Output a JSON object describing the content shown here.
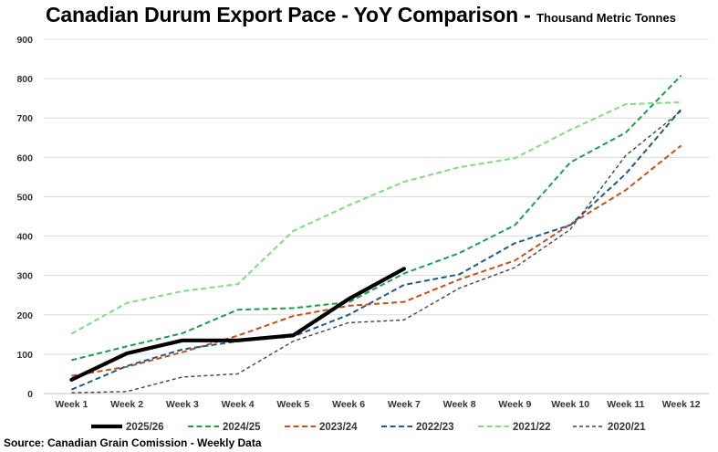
{
  "header": {
    "title": "Canadian Durum Export Pace - YoY Comparison -",
    "subtitle": "Thousand Metric Tonnes"
  },
  "footer": {
    "source": "Source: Canadian Grain Comission - Weekly Data"
  },
  "chart_data": {
    "type": "line",
    "title": "Canadian Durum Export Pace - YoY Comparison -",
    "subtitle": "Thousand Metric Tonnes",
    "xlabel": "",
    "ylabel": "",
    "categories": [
      "Week 1",
      "Week 2",
      "Week 3",
      "Week 4",
      "Week 5",
      "Week 6",
      "Week 7",
      "Week 8",
      "Week 9",
      "Week 10",
      "Week 11",
      "Week 12"
    ],
    "ylim": [
      0,
      900
    ],
    "yticks": [
      0,
      100,
      200,
      300,
      400,
      500,
      600,
      700,
      800,
      900
    ],
    "grid": "horizontal",
    "legend_position": "bottom",
    "series": [
      {
        "name": "2025/26",
        "color": "#000000",
        "style": "solid",
        "values": [
          35,
          102,
          135,
          135,
          148,
          240,
          317,
          null,
          null,
          null,
          null,
          null
        ]
      },
      {
        "name": "2024/25",
        "color": "#1e9e4a",
        "style": "dashed",
        "values": [
          85,
          120,
          153,
          213,
          217,
          232,
          305,
          357,
          428,
          587,
          663,
          808
        ]
      },
      {
        "name": "2023/24",
        "color": "#c4501a",
        "style": "dashed",
        "values": [
          45,
          68,
          105,
          147,
          197,
          223,
          233,
          290,
          338,
          430,
          517,
          630
        ]
      },
      {
        "name": "2022/23",
        "color": "#1f5a8a",
        "style": "dashed",
        "values": [
          10,
          70,
          112,
          133,
          145,
          200,
          276,
          303,
          382,
          428,
          558,
          722
        ]
      },
      {
        "name": "2021/22",
        "color": "#7fdc7f",
        "style": "dashed",
        "values": [
          152,
          230,
          260,
          278,
          413,
          478,
          538,
          575,
          598,
          670,
          735,
          740
        ]
      },
      {
        "name": "2020/21",
        "color": "#444444",
        "style": "dashed-thin",
        "values": [
          2,
          5,
          42,
          50,
          133,
          180,
          187,
          268,
          320,
          417,
          605,
          718
        ]
      }
    ]
  }
}
